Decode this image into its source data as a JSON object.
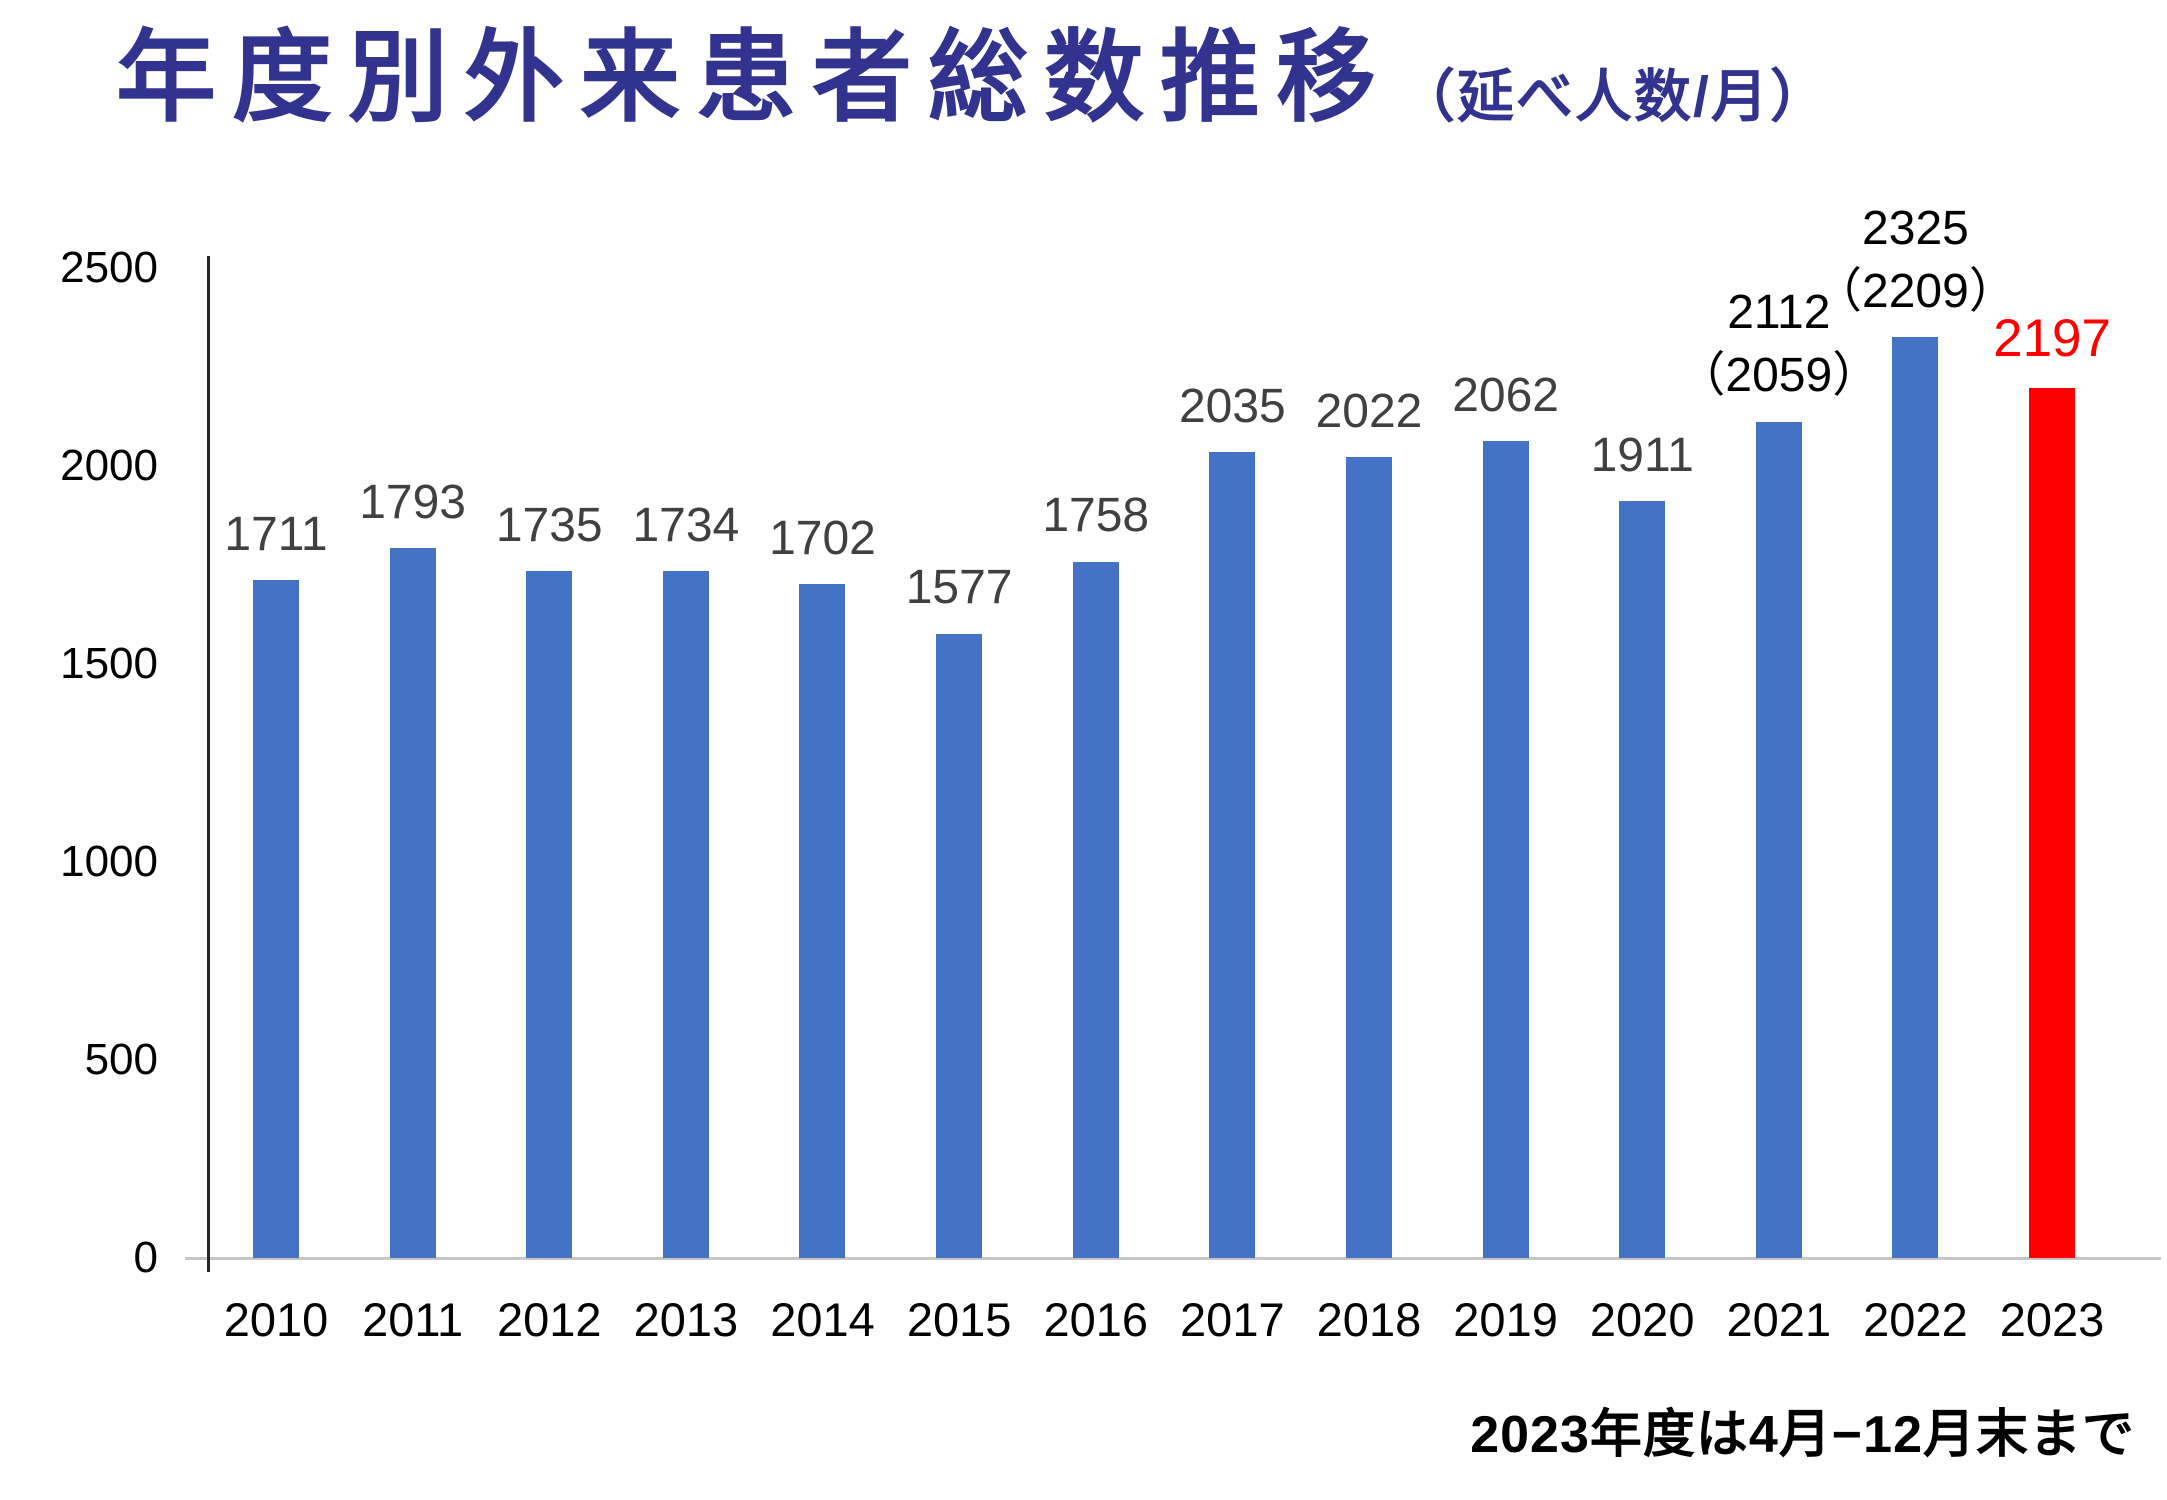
{
  "page": {
    "title": "年度別外来患者総数推移",
    "subtitle": "（延べ人数/月）",
    "footnote": "2023年度は4月−12月末まで"
  },
  "colors": {
    "title_text": "#32328F",
    "bar_default": "#4472C4",
    "bar_highlight": "#FF0000",
    "data_label_gray": "#404040",
    "data_label_black": "#000000",
    "data_label_highlight": "#FF0000",
    "axis_text": "#000000",
    "y_axis_line": "#262626",
    "x_baseline": "#C6C6C6",
    "background": "#FFFFFF"
  },
  "chart_data": {
    "type": "bar",
    "title": "年度別外来患者総数推移",
    "subtitle": "（延べ人数/月）",
    "footnote": "2023年度は4月−12月末まで",
    "categories": [
      "2010",
      "2011",
      "2012",
      "2013",
      "2014",
      "2015",
      "2016",
      "2017",
      "2018",
      "2019",
      "2020",
      "2021",
      "2022",
      "2023"
    ],
    "values": [
      1711,
      1793,
      1735,
      1734,
      1702,
      1577,
      1758,
      2035,
      2022,
      2062,
      1911,
      2112,
      2325,
      2197
    ],
    "parenthetical_values": {
      "2021": 2059,
      "2022": 2209
    },
    "ylim": [
      0,
      2500
    ],
    "yticks": [
      0,
      500,
      1000,
      1500,
      2000,
      2500
    ],
    "grid": false,
    "legend": false,
    "xlabel": "",
    "ylabel": "",
    "bars": [
      {
        "year": "2010",
        "value": 1711,
        "label": "1711",
        "label_color": "#404040",
        "bar_color": "#4472C4"
      },
      {
        "year": "2011",
        "value": 1793,
        "label": "1793",
        "label_color": "#404040",
        "bar_color": "#4472C4"
      },
      {
        "year": "2012",
        "value": 1735,
        "label": "1735",
        "label_color": "#404040",
        "bar_color": "#4472C4"
      },
      {
        "year": "2013",
        "value": 1734,
        "label": "1734",
        "label_color": "#404040",
        "bar_color": "#4472C4"
      },
      {
        "year": "2014",
        "value": 1702,
        "label": "1702",
        "label_color": "#404040",
        "bar_color": "#4472C4"
      },
      {
        "year": "2015",
        "value": 1577,
        "label": "1577",
        "label_color": "#404040",
        "bar_color": "#4472C4"
      },
      {
        "year": "2016",
        "value": 1758,
        "label": "1758",
        "label_color": "#404040",
        "bar_color": "#4472C4"
      },
      {
        "year": "2017",
        "value": 2035,
        "label": "2035",
        "label_color": "#404040",
        "bar_color": "#4472C4"
      },
      {
        "year": "2018",
        "value": 2022,
        "label": "2022",
        "label_color": "#404040",
        "bar_color": "#4472C4"
      },
      {
        "year": "2019",
        "value": 2062,
        "label": "2062",
        "label_color": "#404040",
        "bar_color": "#4472C4"
      },
      {
        "year": "2020",
        "value": 1911,
        "label": "1911",
        "label_color": "#404040",
        "bar_color": "#4472C4"
      },
      {
        "year": "2021",
        "value": 2112,
        "label": "2112",
        "sub_label": "（2059）",
        "label_color": "#000000",
        "bar_color": "#4472C4"
      },
      {
        "year": "2022",
        "value": 2325,
        "label": "2325",
        "sub_label": "（2209）",
        "label_color": "#000000",
        "bar_color": "#4472C4"
      },
      {
        "year": "2023",
        "value": 2197,
        "label": "2197",
        "label_color": "#FF0000",
        "bar_color": "#FF0000",
        "highlight": true
      }
    ]
  }
}
